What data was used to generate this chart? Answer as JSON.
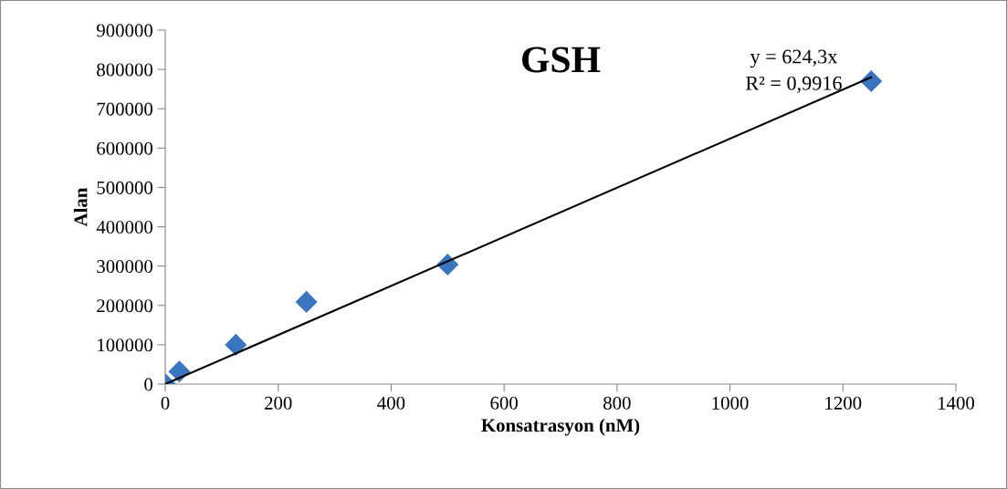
{
  "chart_data": {
    "type": "scatter",
    "title": "GSH",
    "xlabel": "Konsatrasyon (nM)",
    "ylabel": "Alan",
    "series": [
      {
        "color": "#3a75c0",
        "marker": "diamond",
        "x": [
          0,
          25,
          125,
          250,
          500,
          1250
        ],
        "values": [
          0,
          32000,
          100000,
          209000,
          304000,
          770000
        ]
      },
      {
        "type": "line",
        "color": "#000000",
        "marker": "none",
        "line_style": "solid",
        "x": [
          0,
          1250
        ],
        "values": [
          0,
          780000
        ]
      }
    ],
    "annotations": [
      "y = 624,3x",
      "R² = 0,9916"
    ],
    "xlim": [
      0,
      1400
    ],
    "xticks": [
      0,
      200,
      400,
      600,
      800,
      1000,
      1200,
      1400
    ],
    "ylim": [
      0,
      900000
    ],
    "yticks": [
      0,
      100000,
      200000,
      300000,
      400000,
      500000,
      600000,
      700000,
      800000,
      900000
    ],
    "grid": false,
    "legend": false
  }
}
